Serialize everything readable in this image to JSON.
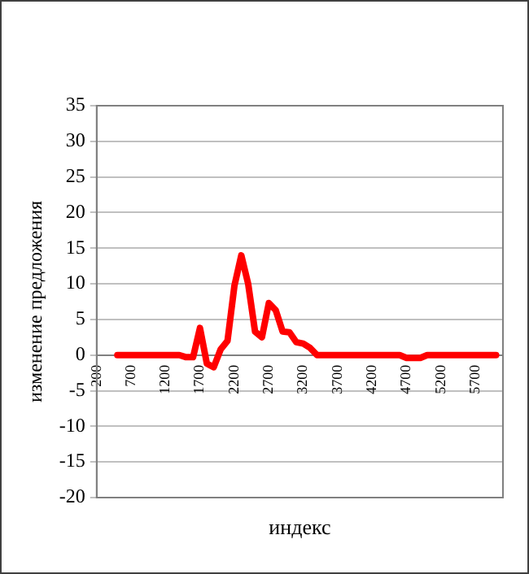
{
  "chart_data": {
    "type": "line",
    "xlabel": "индекс",
    "ylabel": "изменение предложения",
    "x": [
      500,
      1400,
      1500,
      1600,
      1700,
      1800,
      1900,
      2000,
      2100,
      2200,
      2300,
      2400,
      2500,
      2600,
      2700,
      2800,
      2900,
      3000,
      3100,
      3200,
      3300,
      3400,
      4600,
      4700,
      4800,
      4900,
      5000,
      6000
    ],
    "series": [
      {
        "color": "#ff0000",
        "values": [
          0,
          0,
          -0.3,
          -0.3,
          3.8,
          -1.2,
          -1.7,
          0.8,
          2,
          9.7,
          14,
          10,
          3.3,
          2.5,
          7.3,
          6.3,
          3.3,
          3.2,
          1.8,
          1.6,
          1,
          0,
          0,
          -0.4,
          -0.4,
          -0.4,
          0,
          0
        ]
      }
    ],
    "xlim": [
      200,
      6100
    ],
    "xticks": [
      200,
      700,
      1200,
      1700,
      2200,
      2700,
      3200,
      3700,
      4200,
      4700,
      5200,
      5700
    ],
    "ylim": [
      -20,
      35
    ],
    "yticks": [
      -20,
      -15,
      -10,
      -5,
      0,
      5,
      10,
      15,
      20,
      25,
      30,
      35
    ],
    "grid": "y",
    "legend": false,
    "marker": "none",
    "line_style": "solid"
  }
}
